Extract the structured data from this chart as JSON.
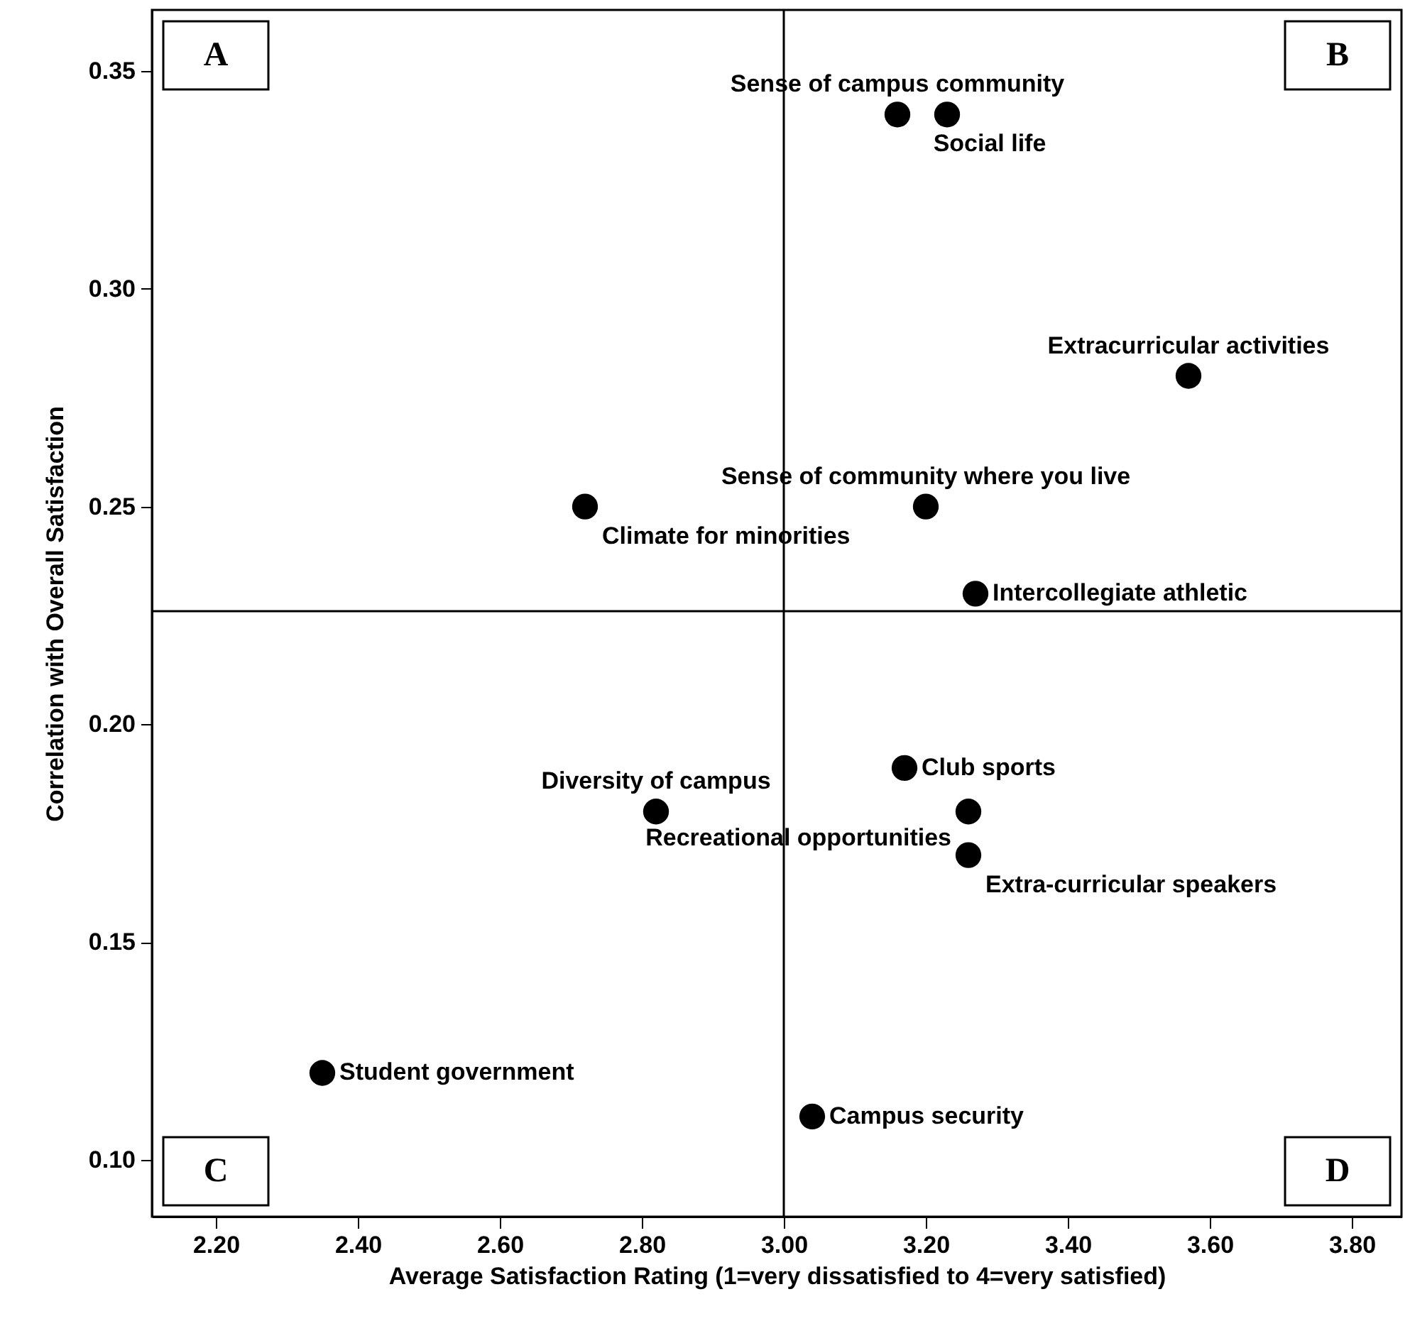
{
  "chart_data": {
    "type": "scatter",
    "xlabel": "Average Satisfaction Rating (1=very dissatisfied to 4=very satisfied)",
    "ylabel": "Correlation with Overall Satisfaction",
    "x": [
      3.16,
      3.23,
      3.57,
      3.2,
      2.72,
      3.27,
      3.17,
      2.82,
      3.26,
      3.26,
      2.35,
      3.04
    ],
    "series": [
      {
        "color": "#000000",
        "values": [
          0.34,
          0.34,
          0.28,
          0.25,
          0.25,
          0.23,
          0.19,
          0.18,
          0.18,
          0.17,
          0.12,
          0.11
        ]
      }
    ],
    "marker": "circle",
    "xlim": [
      2.11,
      3.87
    ],
    "xticks": [
      {
        "value": 2.2,
        "label": "2.20"
      },
      {
        "value": 2.4,
        "label": "2.40"
      },
      {
        "value": 2.6,
        "label": "2.60"
      },
      {
        "value": 2.8,
        "label": "2.80"
      },
      {
        "value": 3.0,
        "label": "3.00"
      },
      {
        "value": 3.2,
        "label": "3.20"
      },
      {
        "value": 3.4,
        "label": "3.40"
      },
      {
        "value": 3.6,
        "label": "3.60"
      },
      {
        "value": 3.8,
        "label": "3.80"
      }
    ],
    "ylim": [
      0.087,
      0.364
    ],
    "yticks": [
      {
        "value": 0.1,
        "label": "0.10"
      },
      0.15,
      {
        "value": 0.2,
        "label": "0.20"
      },
      0.25,
      {
        "value": 0.3,
        "label": "0.30"
      },
      0.35
    ],
    "ref_lines": [
      {
        "axis": "x",
        "value": 3.0
      },
      {
        "axis": "y",
        "value": 0.226
      }
    ],
    "annotations": [
      "A",
      "B",
      "C",
      "D",
      {
        "text": "Sense of campus community",
        "x": 3.16,
        "y": 0.34
      },
      {
        "text": "Social life",
        "x": 3.23,
        "y": 0.34
      },
      {
        "text": "Extracurricular activities",
        "x": 3.57,
        "y": 0.28
      },
      {
        "text": "Sense of community where you live",
        "x": 3.2,
        "y": 0.25
      },
      {
        "text": "Climate for minorities",
        "x": 2.72,
        "y": 0.25
      },
      {
        "text": "Intercollegiate athletic",
        "x": 3.27,
        "y": 0.23
      },
      {
        "text": "Club sports",
        "x": 3.17,
        "y": 0.19
      },
      {
        "text": "Diversity of campus",
        "x": 2.82,
        "y": 0.18
      },
      {
        "text": "Recreational opportunities",
        "x": 3.26,
        "y": 0.18
      },
      {
        "text": "Extra-curricular speakers",
        "x": 3.26,
        "y": 0.17
      },
      {
        "text": "Student government",
        "x": 2.35,
        "y": 0.12
      },
      {
        "text": "Campus security",
        "x": 3.04,
        "y": 0.11
      }
    ]
  }
}
